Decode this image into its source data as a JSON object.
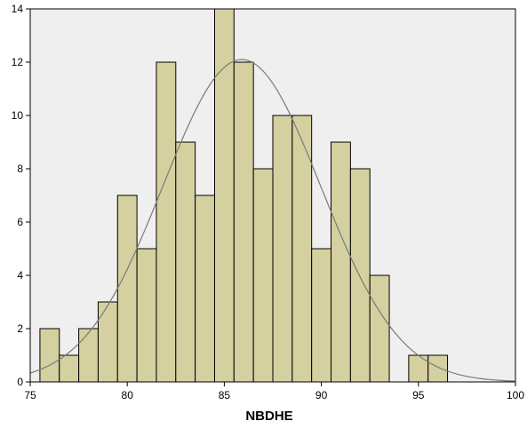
{
  "chart_data": {
    "type": "bar",
    "subtype": "histogram",
    "title": "",
    "xlabel": "NBDHE",
    "ylabel": "",
    "xlim": [
      75,
      100
    ],
    "ylim": [
      0,
      14
    ],
    "x_ticks": [
      75,
      80,
      85,
      90,
      95,
      100
    ],
    "y_ticks": [
      0,
      2,
      4,
      6,
      8,
      10,
      12,
      14
    ],
    "grid": false,
    "bin_width": 1,
    "bins": [
      {
        "start": 75.5,
        "count": 2
      },
      {
        "start": 76.5,
        "count": 1
      },
      {
        "start": 77.5,
        "count": 2
      },
      {
        "start": 78.5,
        "count": 3
      },
      {
        "start": 79.5,
        "count": 7
      },
      {
        "start": 80.5,
        "count": 5
      },
      {
        "start": 81.5,
        "count": 12
      },
      {
        "start": 82.5,
        "count": 9
      },
      {
        "start": 83.5,
        "count": 7
      },
      {
        "start": 84.5,
        "count": 14
      },
      {
        "start": 85.5,
        "count": 12
      },
      {
        "start": 86.5,
        "count": 8
      },
      {
        "start": 87.5,
        "count": 10
      },
      {
        "start": 88.5,
        "count": 10
      },
      {
        "start": 89.5,
        "count": 5
      },
      {
        "start": 90.5,
        "count": 9
      },
      {
        "start": 91.5,
        "count": 8
      },
      {
        "start": 92.5,
        "count": 4
      },
      {
        "start": 94.5,
        "count": 1
      },
      {
        "start": 95.5,
        "count": 1
      }
    ],
    "normal_curve": {
      "mean": 85.9,
      "sd": 4.07,
      "peak": 12.1
    },
    "colors": {
      "plot_background": "#efefef",
      "bar_fill": "#d4d0a0",
      "bar_stroke": "#000000",
      "curve": "#7a7a7a",
      "axis": "#000000"
    }
  }
}
